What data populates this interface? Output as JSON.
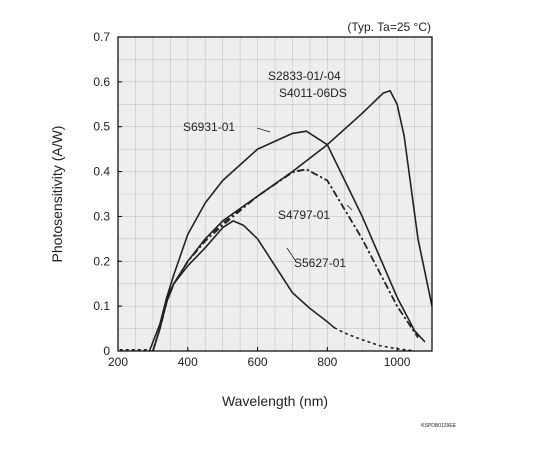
{
  "chart_data": {
    "type": "line",
    "title": "",
    "note": "(Typ. Ta=25 °C)",
    "xlabel": "Wavelength (nm)",
    "ylabel": "Photosensitivity (A/W)",
    "xlim": [
      200,
      1100
    ],
    "ylim": [
      0,
      0.7
    ],
    "xticks": [
      200,
      400,
      600,
      800,
      1000
    ],
    "yticks": [
      0,
      0.1,
      0.2,
      0.3,
      0.4,
      0.5,
      0.6,
      0.7
    ],
    "ytick_labels": [
      "0",
      "0.1",
      "0.2",
      "0.3",
      "0.4",
      "0.5",
      "0.6",
      "0.7"
    ],
    "grid": true,
    "figure_code": "KSPDB0129EE",
    "series": [
      {
        "name": "S2833-01/-04",
        "style": "solid",
        "x": [
          300,
          320,
          340,
          360,
          400,
          450,
          500,
          600,
          700,
          800,
          900,
          960,
          980,
          1000,
          1020,
          1060,
          1100
        ],
        "y": [
          0.0,
          0.05,
          0.11,
          0.15,
          0.2,
          0.25,
          0.29,
          0.345,
          0.4,
          0.46,
          0.53,
          0.575,
          0.58,
          0.55,
          0.48,
          0.25,
          0.1
        ]
      },
      {
        "name": "S4011-06DS",
        "style": "dash-dot",
        "x": [
          300,
          320,
          340,
          360,
          400,
          450,
          500,
          600,
          700,
          740,
          800,
          900,
          1000,
          1060
        ],
        "y": [
          0.0,
          0.05,
          0.11,
          0.15,
          0.2,
          0.245,
          0.285,
          0.345,
          0.4,
          0.405,
          0.38,
          0.25,
          0.1,
          0.03
        ]
      },
      {
        "name": "S6931-01",
        "style": "solid",
        "x": [
          300,
          320,
          340,
          360,
          400,
          450,
          500,
          600,
          700,
          740,
          800,
          900,
          1000,
          1050,
          1080
        ],
        "y": [
          0.0,
          0.05,
          0.12,
          0.17,
          0.26,
          0.33,
          0.38,
          0.45,
          0.485,
          0.49,
          0.46,
          0.3,
          0.12,
          0.045,
          0.02
        ]
      },
      {
        "name": "S4797-01",
        "style": "dash-dot",
        "x": [
          300,
          320,
          340,
          360,
          400,
          450,
          500,
          600,
          700,
          740,
          800,
          900,
          1000,
          1060
        ],
        "y": [
          0.0,
          0.05,
          0.11,
          0.15,
          0.2,
          0.245,
          0.28,
          0.345,
          0.398,
          0.405,
          0.38,
          0.25,
          0.1,
          0.03
        ]
      },
      {
        "name": "S5627-01",
        "style": "solid-then-dotted",
        "x": [
          290,
          320,
          340,
          360,
          400,
          450,
          500,
          530,
          560,
          600,
          650,
          700,
          750,
          800,
          820,
          850,
          900,
          950,
          1000,
          1050
        ],
        "y": [
          0.0,
          0.06,
          0.12,
          0.15,
          0.19,
          0.23,
          0.275,
          0.29,
          0.28,
          0.25,
          0.19,
          0.13,
          0.095,
          0.065,
          0.052,
          0.04,
          0.025,
          0.012,
          0.005,
          0.0
        ]
      }
    ],
    "labels": [
      {
        "series": "S2833-01/-04",
        "text": "S2833-01/-04"
      },
      {
        "series": "S4011-06DS",
        "text": "S4011-06DS"
      },
      {
        "series": "S6931-01",
        "text": "S6931-01"
      },
      {
        "series": "S4797-01",
        "text": "S4797-01"
      },
      {
        "series": "S5627-01",
        "text": "S5627-01"
      }
    ],
    "colors": {
      "plot_bg": "#efeeec",
      "grid": "#c4c4c4",
      "frame": "#000000",
      "line": "#222222"
    }
  }
}
